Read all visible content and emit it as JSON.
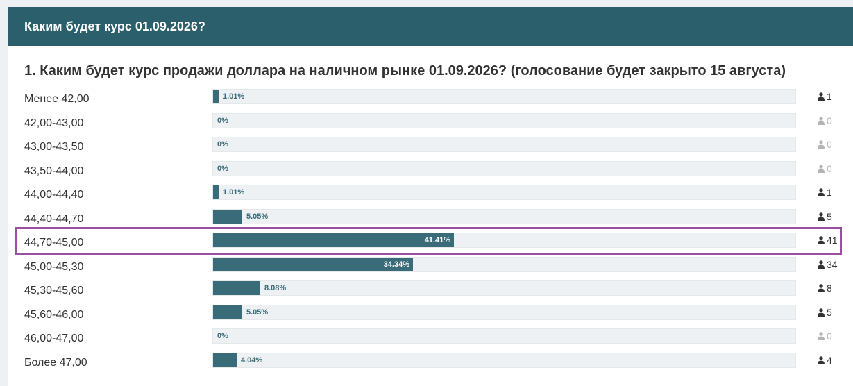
{
  "header": {
    "title": "Каким будет курс 01.09.2026?"
  },
  "question": {
    "text": "1. Каким будет курс продажи доллара на наличном рынке 01.09.2026? (голосование будет закрыто 15 августа)"
  },
  "colors": {
    "header_bg": "#2b5f6c",
    "bar_fill": "#3a6b78",
    "highlight": "#9b4fa0"
  },
  "options": [
    {
      "label": "Менее 42,00",
      "percent_text": "1.01%",
      "percent": 1.01,
      "votes": "1"
    },
    {
      "label": "42,00-43,00",
      "percent_text": "0%",
      "percent": 0,
      "votes": "0"
    },
    {
      "label": "43,00-43,50",
      "percent_text": "0%",
      "percent": 0,
      "votes": "0"
    },
    {
      "label": "43,50-44,00",
      "percent_text": "0%",
      "percent": 0,
      "votes": "0"
    },
    {
      "label": "44,00-44,40",
      "percent_text": "1.01%",
      "percent": 1.01,
      "votes": "1"
    },
    {
      "label": "44,40-44,70",
      "percent_text": "5.05%",
      "percent": 5.05,
      "votes": "5"
    },
    {
      "label": "44,70-45,00",
      "percent_text": "41.41%",
      "percent": 41.41,
      "votes": "41"
    },
    {
      "label": "45,00-45,30",
      "percent_text": "34.34%",
      "percent": 34.34,
      "votes": "34"
    },
    {
      "label": "45,30-45,60",
      "percent_text": "8.08%",
      "percent": 8.08,
      "votes": "8"
    },
    {
      "label": "45,60-46,00",
      "percent_text": "5.05%",
      "percent": 5.05,
      "votes": "5"
    },
    {
      "label": "46,00-47,00",
      "percent_text": "0%",
      "percent": 0,
      "votes": "0"
    },
    {
      "label": "Более 47,00",
      "percent_text": "4.04%",
      "percent": 4.04,
      "votes": "4"
    }
  ]
}
